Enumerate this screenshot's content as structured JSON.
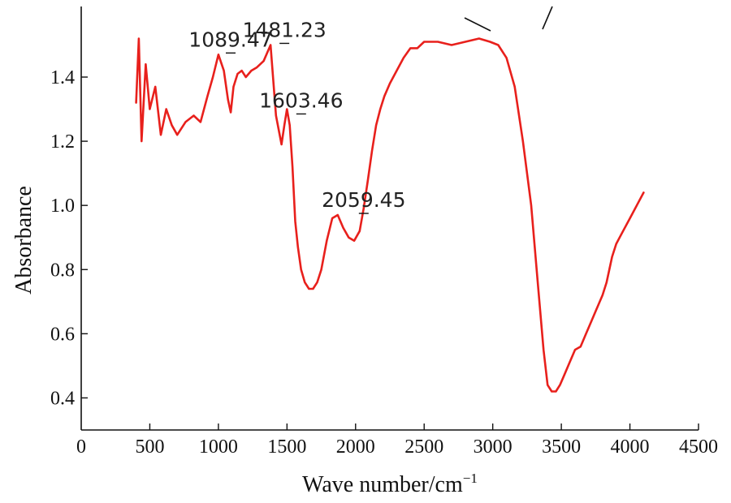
{
  "chart_data": {
    "type": "line",
    "title": "",
    "xlabel": "Wave number/cm",
    "xlabel_sup": "−1",
    "ylabel": "Absorbance",
    "xlim": [
      0,
      4500
    ],
    "ylim": [
      0.3,
      1.62
    ],
    "grid": false,
    "legend": "none",
    "color": "#e8201c",
    "x_ticks": [
      0,
      500,
      1000,
      1500,
      2000,
      2500,
      3000,
      3500,
      4000,
      4500
    ],
    "y_ticks": [
      0.4,
      0.6,
      0.8,
      1.0,
      1.2,
      1.4
    ],
    "y_tick_labels": [
      "0.4",
      "0.6",
      "0.8",
      "1.0",
      "1.2",
      "1.4"
    ],
    "series": [
      {
        "x": [
          400,
          420,
          440,
          470,
          500,
          540,
          580,
          620,
          660,
          700,
          760,
          820,
          870,
          920,
          960,
          1000,
          1040,
          1070,
          1090,
          1110,
          1140,
          1170,
          1200,
          1240,
          1280,
          1330,
          1380,
          1420,
          1460,
          1481,
          1500,
          1520,
          1540,
          1560,
          1580,
          1603,
          1630,
          1660,
          1690,
          1720,
          1750,
          1790,
          1830,
          1870,
          1910,
          1950,
          1990,
          2030,
          2059,
          2090,
          2120,
          2150,
          2180,
          2210,
          2250,
          2300,
          2350,
          2400,
          2450,
          2500,
          2600,
          2700,
          2800,
          2900,
          2980,
          3040,
          3100,
          3160,
          3220,
          3280,
          3330,
          3370,
          3400,
          3430,
          3460,
          3490,
          3520,
          3560,
          3600,
          3640,
          3680,
          3720,
          3760,
          3800,
          3830,
          3850,
          3870,
          3900,
          3950,
          4000,
          4050,
          4100
        ],
        "y": [
          1.32,
          1.52,
          1.2,
          1.44,
          1.3,
          1.37,
          1.22,
          1.3,
          1.25,
          1.22,
          1.26,
          1.28,
          1.26,
          1.34,
          1.4,
          1.47,
          1.42,
          1.33,
          1.29,
          1.37,
          1.41,
          1.42,
          1.4,
          1.42,
          1.43,
          1.45,
          1.5,
          1.28,
          1.19,
          1.25,
          1.3,
          1.25,
          1.12,
          0.95,
          0.87,
          0.8,
          0.76,
          0.74,
          0.74,
          0.76,
          0.8,
          0.89,
          0.96,
          0.97,
          0.93,
          0.9,
          0.89,
          0.92,
          0.99,
          1.08,
          1.17,
          1.25,
          1.3,
          1.34,
          1.38,
          1.42,
          1.46,
          1.49,
          1.49,
          1.51,
          1.51,
          1.5,
          1.51,
          1.52,
          1.51,
          1.5,
          1.46,
          1.37,
          1.2,
          1.0,
          0.75,
          0.55,
          0.44,
          0.42,
          0.42,
          0.44,
          0.47,
          0.51,
          0.55,
          0.56,
          0.6,
          0.64,
          0.68,
          0.72,
          0.76,
          0.8,
          0.84,
          0.88,
          0.92,
          0.96,
          1.0,
          1.04
        ]
      }
    ],
    "annotations": [
      {
        "text": "1089.47",
        "x": 1089.47,
        "y": 1.47
      },
      {
        "text": "1481.23",
        "x": 1481.23,
        "y": 1.5
      },
      {
        "text": "1603.46",
        "x": 1603.46,
        "y": 1.28
      },
      {
        "text": "2059.45",
        "x": 2059.45,
        "y": 0.97
      }
    ]
  }
}
